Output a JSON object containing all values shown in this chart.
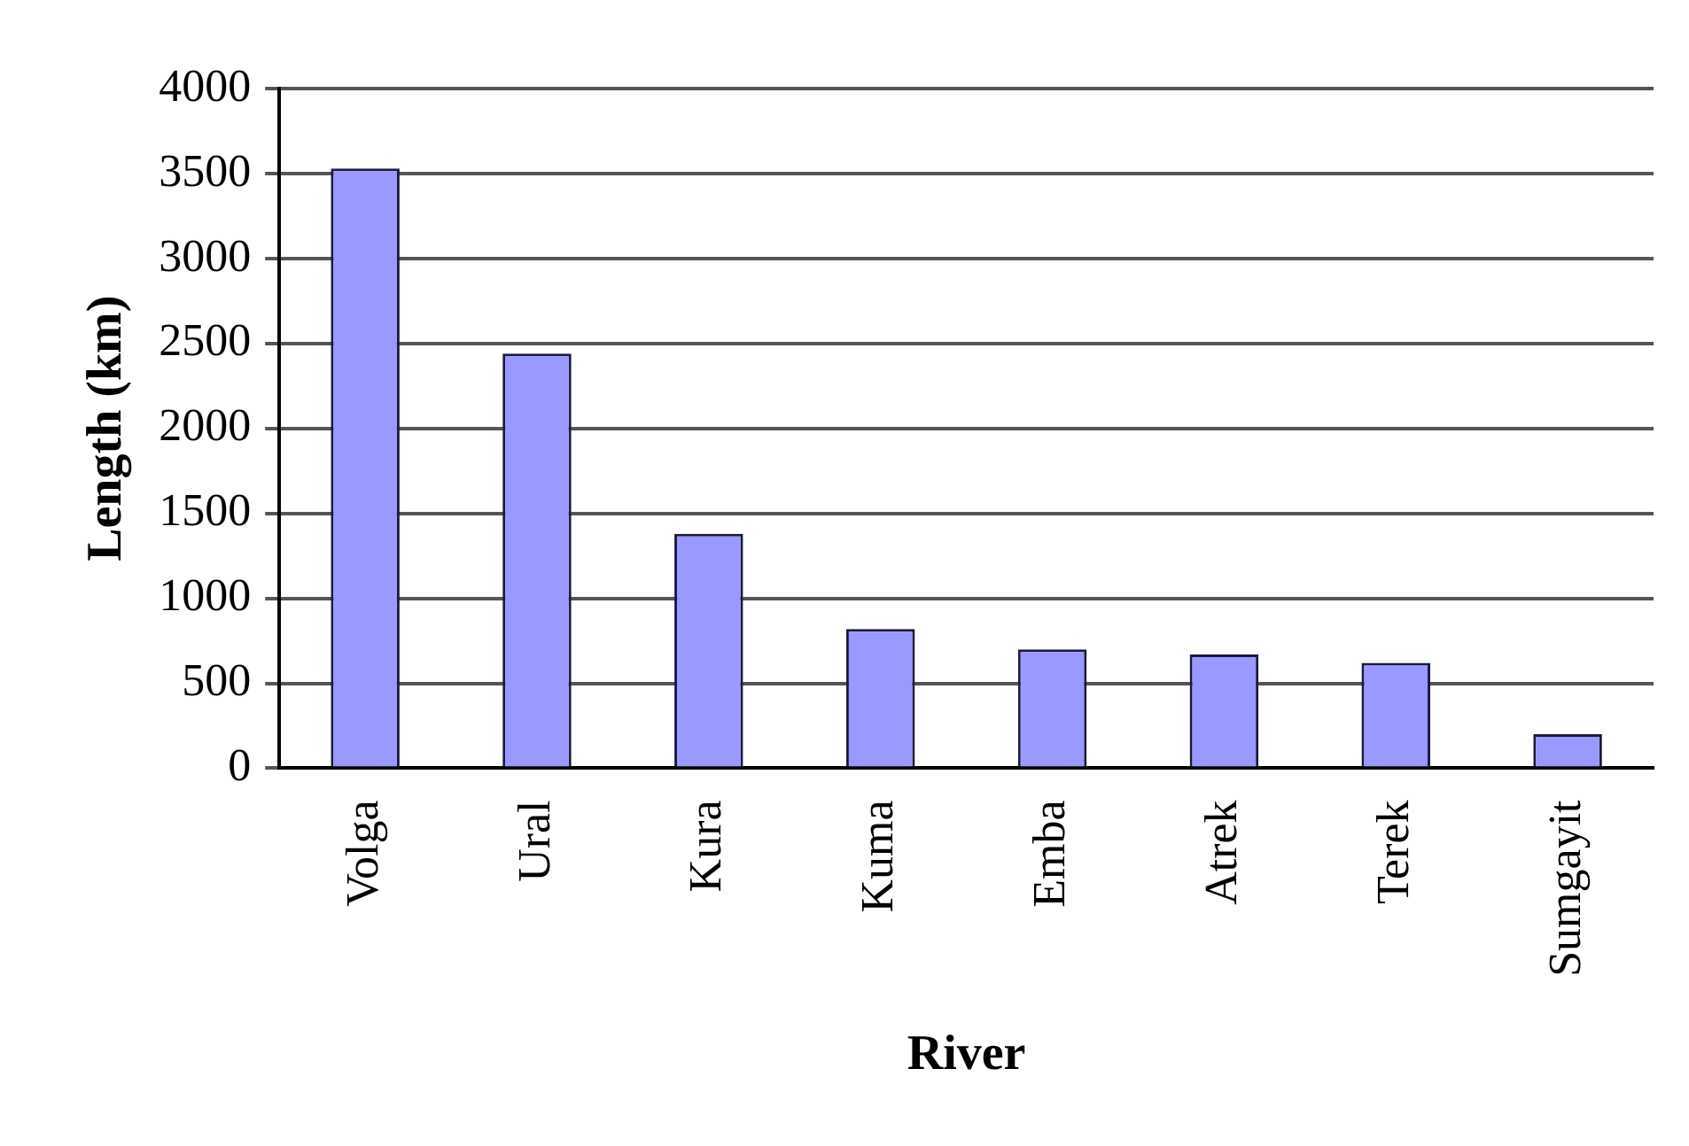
{
  "chart_data": {
    "type": "bar",
    "xlabel": "River",
    "ylabel": "Length (km)",
    "categories": [
      "Volga",
      "Ural",
      "Kura",
      "Kuma",
      "Emba",
      "Atrek",
      "Terek",
      "Sumgayit"
    ],
    "values": [
      3530,
      2440,
      1380,
      820,
      700,
      670,
      620,
      200
    ],
    "color": "#9999ff",
    "ylim": [
      0,
      4000
    ],
    "yticks": [
      0,
      500,
      1000,
      1500,
      2000,
      2500,
      3000,
      3500,
      4000
    ],
    "grid": "y",
    "legend": false
  }
}
